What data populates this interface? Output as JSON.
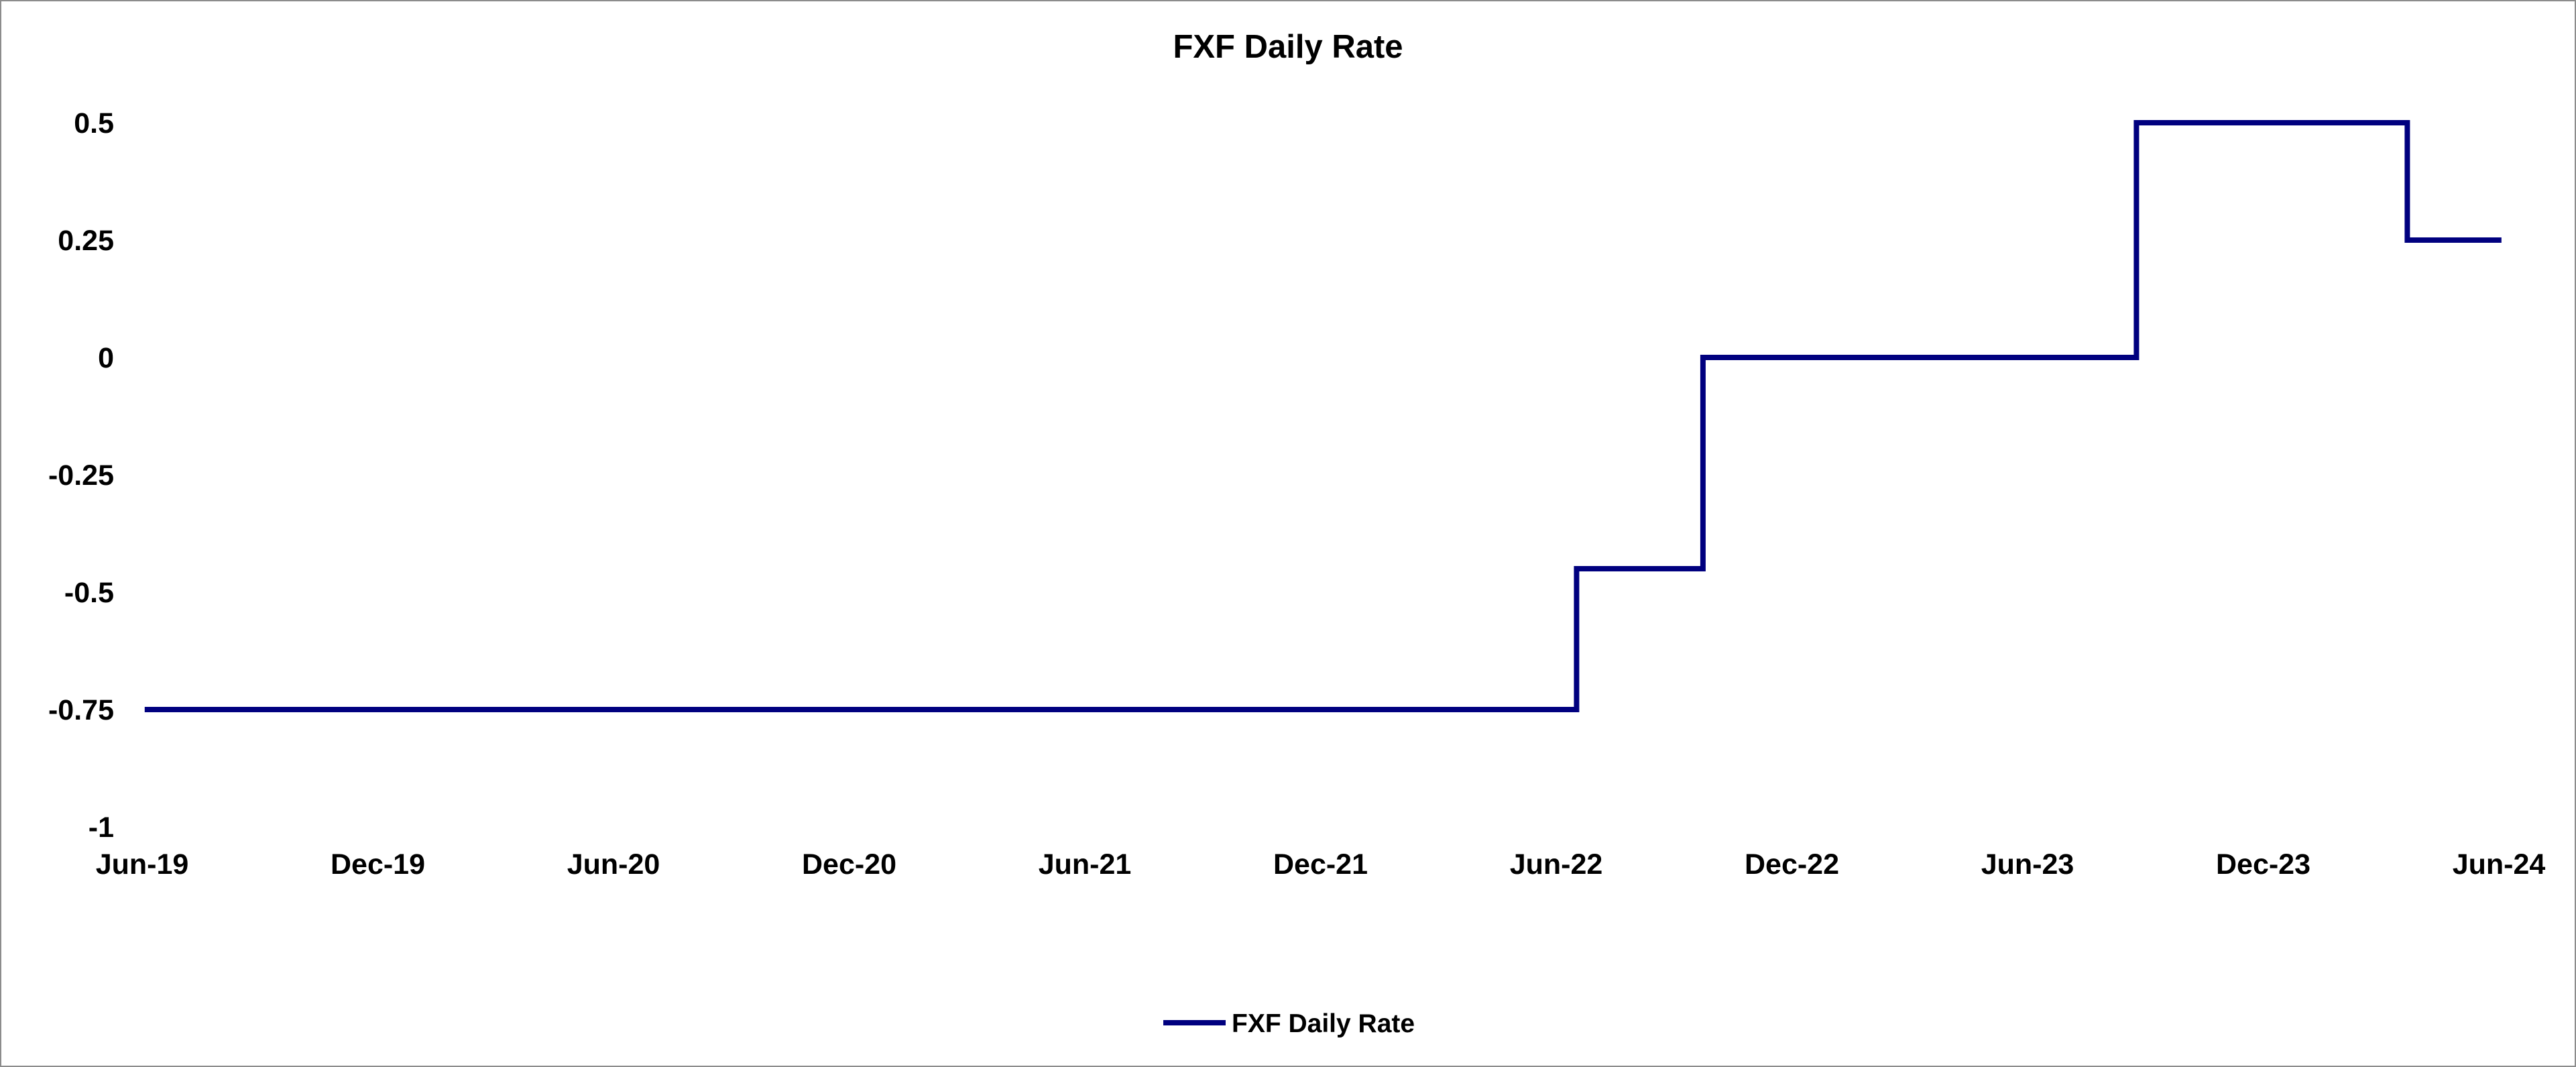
{
  "chart_data": {
    "type": "line",
    "title": "FXF Daily Rate",
    "xlabel": "",
    "ylabel": "",
    "step": true,
    "grid": false,
    "legend_position": "bottom-center",
    "colors": {
      "line": "#00007f",
      "frame": "#8c8c8c"
    },
    "xlim": [
      "2019-06-01",
      "2024-06-01"
    ],
    "ylim": [
      -1,
      0.5
    ],
    "x_ticks": [
      "Jun-19",
      "Dec-19",
      "Jun-20",
      "Dec-20",
      "Jun-21",
      "Dec-21",
      "Jun-22",
      "Dec-22",
      "Jun-23",
      "Dec-23",
      "Jun-24"
    ],
    "y_ticks": [
      "0.5",
      "0.25",
      "0",
      "-0.25",
      "-0.5",
      "-0.75",
      "-1"
    ],
    "series": [
      {
        "name": "FXF Daily Rate",
        "x": [
          "2019-06-03",
          "2022-06-17",
          "2022-06-17",
          "2022-09-23",
          "2022-09-23",
          "2023-08-25",
          "2023-08-25",
          "2024-03-22",
          "2024-03-22",
          "2024-06-03"
        ],
        "y": [
          -0.75,
          -0.75,
          -0.45,
          -0.45,
          0,
          0,
          0.5,
          0.5,
          0.25,
          0.25
        ]
      }
    ]
  }
}
